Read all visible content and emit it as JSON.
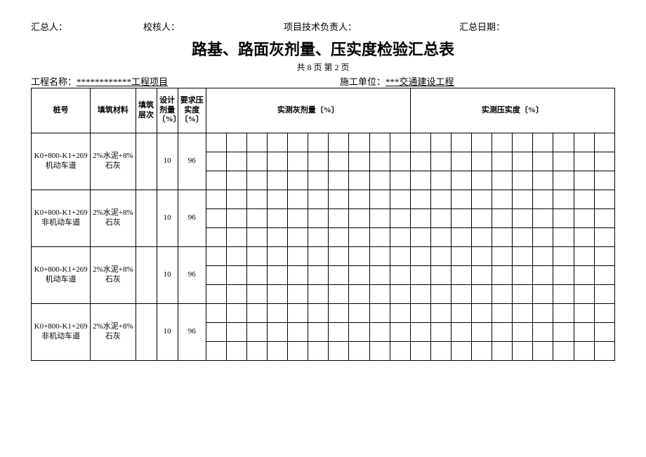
{
  "top": {
    "summarizer_label": "汇总人：",
    "checker_label": "校核人：",
    "tech_label": "项目技术负责人：",
    "date_label": "汇总日期："
  },
  "title": "路基、路面灰剂量、压实度检验汇总表",
  "pager": "共 8 页  第 2 页",
  "meta": {
    "project_label": "工程名称：",
    "project_value": "************工程项目",
    "unit_label": "施工单位：",
    "unit_value": "***交通建设工程"
  },
  "headers": {
    "stake": "桩号",
    "material": "填筑材料",
    "layer": "填筑层次",
    "design": "设计剂量〔%〕",
    "required": "要求压实度〔%〕",
    "measured_agent": "实测灰剂量〔%〕",
    "measured_comp": "实测压实度〔%〕"
  },
  "rows": [
    {
      "stake": "K0+800-K1+269机动车道",
      "material": "2%水泥+8%石灰",
      "layer": "",
      "design": "10",
      "required": "96"
    },
    {
      "stake": "K0+800-K1+269非机动车道",
      "material": "2%水泥+8%石灰",
      "layer": "",
      "design": "10",
      "required": "96"
    },
    {
      "stake": "K0+800-K1+269机动车道",
      "material": "2%水泥+8%石灰",
      "layer": "",
      "design": "10",
      "required": "96"
    },
    {
      "stake": "K0+800-K1+269非机动车道",
      "material": "2%水泥+8%石灰",
      "layer": "",
      "design": "10",
      "required": "96"
    }
  ],
  "style": {
    "background": "#ffffff",
    "text_color": "#000000",
    "border_color": "#000000",
    "title_fontsize": 22,
    "body_fontsize": 13,
    "table_fontsize": 11,
    "measured_cols_each_side": 10,
    "subrows_per_group": 3
  }
}
